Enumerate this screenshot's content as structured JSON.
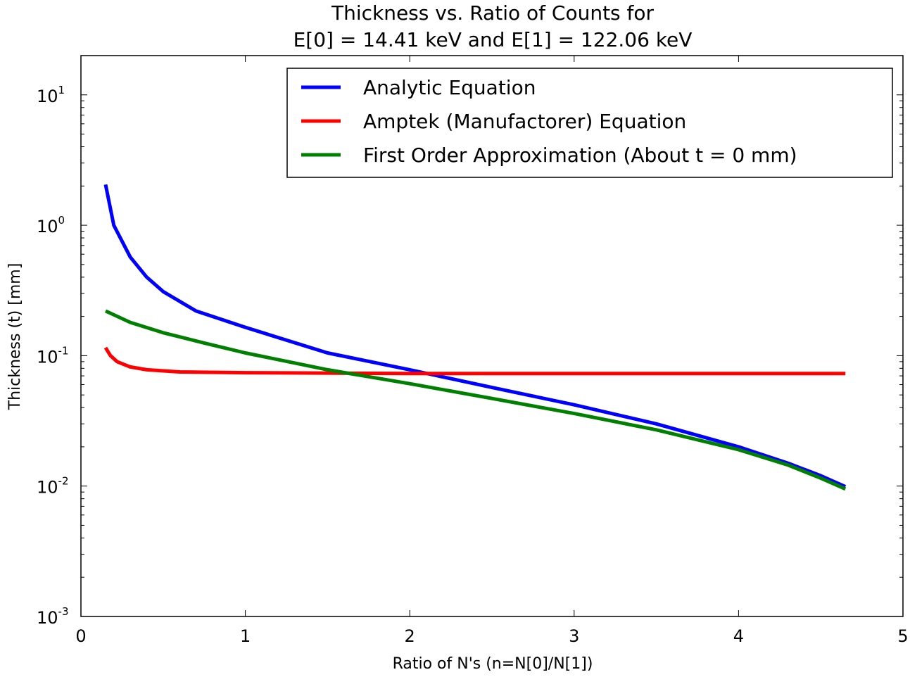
{
  "chart_data": {
    "type": "line",
    "title": "Thickness vs. Ratio of Counts for",
    "subtitle": "E[0] = 14.41 keV and E[1] = 122.06 keV",
    "xlabel": "Ratio of N's (n=N[0]/N[1])",
    "ylabel": "Thickness (t) [mm]",
    "xlim": [
      0,
      5
    ],
    "ylim": [
      0.001,
      20
    ],
    "yscale": "log",
    "grid": false,
    "legend_position": "top-right",
    "x_ticks": [
      "0",
      "1",
      "2",
      "3",
      "4",
      "5"
    ],
    "y_ticks": [
      {
        "value": 0.001,
        "base": "10",
        "exp": "-3"
      },
      {
        "value": 0.01,
        "base": "10",
        "exp": "-2"
      },
      {
        "value": 0.1,
        "base": "10",
        "exp": "-1"
      },
      {
        "value": 1,
        "base": "10",
        "exp": "0"
      },
      {
        "value": 10,
        "base": "10",
        "exp": "1"
      }
    ],
    "series": [
      {
        "name": "Analytic Equation",
        "color": "#0000ff",
        "x": [
          0.15,
          0.2,
          0.3,
          0.4,
          0.5,
          0.7,
          1.0,
          1.5,
          2.0,
          2.5,
          3.0,
          3.5,
          4.0,
          4.3,
          4.5,
          4.65
        ],
        "y": [
          2.05,
          1.0,
          0.57,
          0.4,
          0.31,
          0.22,
          0.165,
          0.105,
          0.078,
          0.057,
          0.042,
          0.03,
          0.02,
          0.015,
          0.012,
          0.0099
        ]
      },
      {
        "name": "Amptek (Manufactorer) Equation",
        "color": "#ff0000",
        "x": [
          0.15,
          0.18,
          0.22,
          0.3,
          0.4,
          0.6,
          1.0,
          2.0,
          3.0,
          4.0,
          4.65
        ],
        "y": [
          0.115,
          0.1,
          0.09,
          0.082,
          0.078,
          0.075,
          0.074,
          0.073,
          0.073,
          0.073,
          0.073
        ]
      },
      {
        "name": "First Order Approximation (About t = 0 mm)",
        "color": "#008000",
        "x": [
          0.15,
          0.3,
          0.5,
          0.75,
          1.0,
          1.5,
          2.0,
          2.5,
          3.0,
          3.5,
          4.0,
          4.3,
          4.5,
          4.65
        ],
        "y": [
          0.22,
          0.18,
          0.15,
          0.125,
          0.105,
          0.078,
          0.061,
          0.047,
          0.036,
          0.027,
          0.019,
          0.0145,
          0.0115,
          0.0095
        ]
      }
    ]
  }
}
